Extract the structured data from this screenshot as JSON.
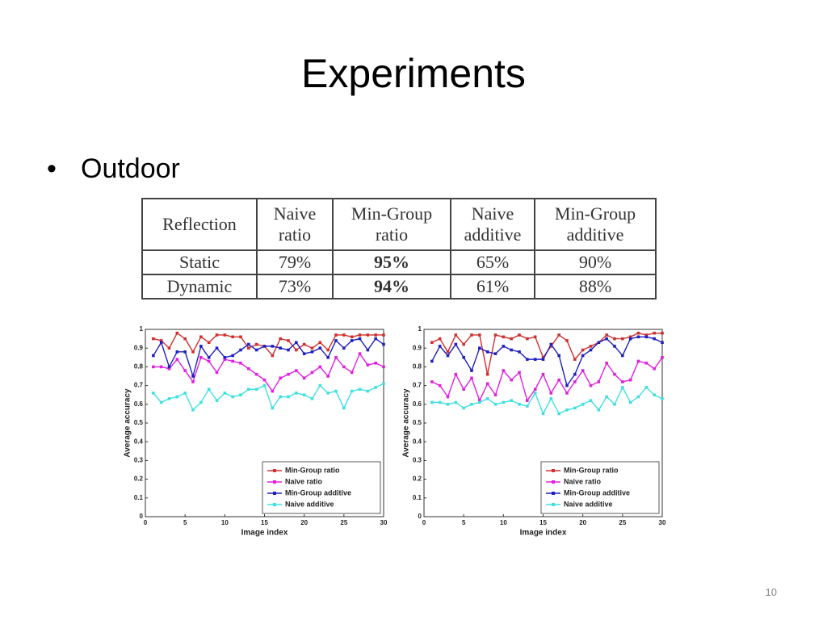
{
  "slide": {
    "title": "Experiments",
    "bullet": "Outdoor",
    "page_number": "10"
  },
  "table": {
    "header": [
      "Reflection",
      "Naive ratio",
      "Min-Group ratio",
      "Naive additive",
      "Min-Group additive"
    ],
    "rows": [
      [
        "Static",
        "79%",
        "95%",
        "65%",
        "90%"
      ],
      [
        "Dynamic",
        "73%",
        "94%",
        "61%",
        "88%"
      ]
    ]
  },
  "chart_data": [
    {
      "type": "line",
      "xlabel": "Image index",
      "ylabel": "Average accuracy",
      "x": [
        1,
        2,
        3,
        4,
        5,
        6,
        7,
        8,
        9,
        10,
        11,
        12,
        13,
        14,
        15,
        16,
        17,
        18,
        19,
        20,
        21,
        22,
        23,
        24,
        25,
        26,
        27,
        28,
        29,
        30
      ],
      "xlim": [
        0,
        30
      ],
      "xticks": [
        0,
        5,
        10,
        15,
        20,
        25,
        30
      ],
      "ylim": [
        0,
        1
      ],
      "yticks": [
        0,
        0.1,
        0.2,
        0.3,
        0.4,
        0.5,
        0.6,
        0.7,
        0.8,
        0.9,
        1
      ],
      "grid": false,
      "legend": "lower right",
      "series": [
        {
          "name": "Min-Group ratio",
          "color": "#d03030",
          "values": [
            0.95,
            0.94,
            0.9,
            0.98,
            0.95,
            0.88,
            0.96,
            0.93,
            0.97,
            0.97,
            0.96,
            0.96,
            0.9,
            0.92,
            0.91,
            0.86,
            0.95,
            0.94,
            0.89,
            0.92,
            0.9,
            0.93,
            0.89,
            0.97,
            0.97,
            0.96,
            0.97,
            0.97,
            0.97,
            0.97
          ]
        },
        {
          "name": "Naive ratio",
          "color": "#e020e0",
          "values": [
            0.8,
            0.8,
            0.79,
            0.84,
            0.78,
            0.72,
            0.85,
            0.83,
            0.77,
            0.84,
            0.83,
            0.82,
            0.79,
            0.76,
            0.73,
            0.67,
            0.74,
            0.76,
            0.78,
            0.74,
            0.77,
            0.8,
            0.75,
            0.85,
            0.8,
            0.77,
            0.87,
            0.81,
            0.82,
            0.8
          ]
        },
        {
          "name": "Min-Group additive",
          "color": "#2020c0",
          "values": [
            0.86,
            0.93,
            0.8,
            0.88,
            0.88,
            0.75,
            0.91,
            0.85,
            0.9,
            0.85,
            0.86,
            0.89,
            0.92,
            0.89,
            0.91,
            0.91,
            0.9,
            0.89,
            0.93,
            0.87,
            0.88,
            0.9,
            0.85,
            0.94,
            0.9,
            0.94,
            0.95,
            0.89,
            0.95,
            0.92
          ]
        },
        {
          "name": "Naive additive",
          "color": "#40e0e0",
          "values": [
            0.66,
            0.61,
            0.63,
            0.64,
            0.66,
            0.57,
            0.61,
            0.68,
            0.62,
            0.66,
            0.64,
            0.65,
            0.68,
            0.68,
            0.7,
            0.58,
            0.64,
            0.64,
            0.66,
            0.65,
            0.63,
            0.7,
            0.66,
            0.67,
            0.58,
            0.67,
            0.68,
            0.67,
            0.69,
            0.71
          ]
        }
      ]
    },
    {
      "type": "line",
      "xlabel": "Image index",
      "ylabel": "Average accuracy",
      "x": [
        1,
        2,
        3,
        4,
        5,
        6,
        7,
        8,
        9,
        10,
        11,
        12,
        13,
        14,
        15,
        16,
        17,
        18,
        19,
        20,
        21,
        22,
        23,
        24,
        25,
        26,
        27,
        28,
        29,
        30
      ],
      "xlim": [
        0,
        30
      ],
      "xticks": [
        0,
        5,
        10,
        15,
        20,
        25,
        30
      ],
      "ylim": [
        0,
        1
      ],
      "yticks": [
        0,
        0.1,
        0.2,
        0.3,
        0.4,
        0.5,
        0.6,
        0.7,
        0.8,
        0.9,
        1
      ],
      "grid": false,
      "legend": "lower right",
      "series": [
        {
          "name": "Min-Group ratio",
          "color": "#d03030",
          "values": [
            0.93,
            0.95,
            0.88,
            0.97,
            0.92,
            0.97,
            0.97,
            0.76,
            0.97,
            0.96,
            0.95,
            0.97,
            0.95,
            0.96,
            0.85,
            0.91,
            0.97,
            0.94,
            0.84,
            0.89,
            0.91,
            0.93,
            0.97,
            0.95,
            0.95,
            0.96,
            0.98,
            0.97,
            0.98,
            0.98
          ]
        },
        {
          "name": "Naive ratio",
          "color": "#e020e0",
          "values": [
            0.72,
            0.7,
            0.64,
            0.76,
            0.68,
            0.74,
            0.62,
            0.71,
            0.65,
            0.78,
            0.73,
            0.77,
            0.62,
            0.68,
            0.76,
            0.66,
            0.73,
            0.66,
            0.72,
            0.78,
            0.7,
            0.72,
            0.82,
            0.76,
            0.72,
            0.73,
            0.83,
            0.82,
            0.79,
            0.85
          ]
        },
        {
          "name": "Min-Group additive",
          "color": "#2020c0",
          "values": [
            0.83,
            0.91,
            0.86,
            0.92,
            0.85,
            0.78,
            0.9,
            0.88,
            0.87,
            0.91,
            0.89,
            0.88,
            0.84,
            0.84,
            0.84,
            0.92,
            0.86,
            0.7,
            0.76,
            0.86,
            0.89,
            0.93,
            0.95,
            0.91,
            0.86,
            0.95,
            0.96,
            0.96,
            0.95,
            0.93
          ]
        },
        {
          "name": "Naive additive",
          "color": "#40e0e0",
          "values": [
            0.61,
            0.61,
            0.6,
            0.61,
            0.58,
            0.6,
            0.61,
            0.63,
            0.6,
            0.61,
            0.62,
            0.6,
            0.59,
            0.66,
            0.55,
            0.63,
            0.55,
            0.57,
            0.58,
            0.6,
            0.62,
            0.57,
            0.64,
            0.6,
            0.69,
            0.61,
            0.64,
            0.69,
            0.65,
            0.63
          ]
        }
      ]
    }
  ]
}
